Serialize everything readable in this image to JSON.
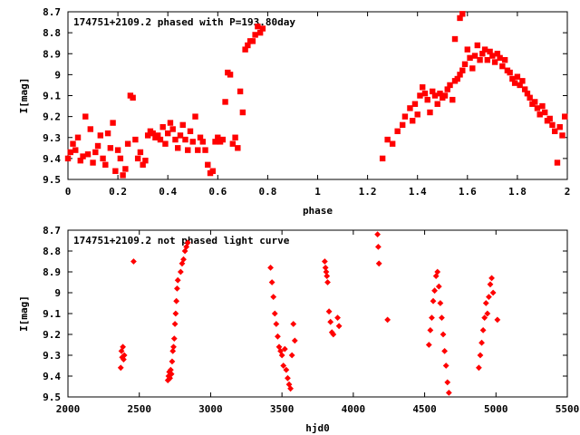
{
  "chart_data": [
    {
      "type": "scatter",
      "title": "174751+2109.2 phased with P=193.80day",
      "xlabel": "phase",
      "ylabel": "I[mag]",
      "xlim": [
        0,
        2
      ],
      "ylim": [
        9.5,
        8.7
      ],
      "y_inverted": true,
      "xticks": [
        "0",
        "0.2",
        "0.4",
        "0.6",
        "0.8",
        "1",
        "1.2",
        "1.4",
        "1.6",
        "1.8",
        "2"
      ],
      "yticks": [
        "8.7",
        "8.8",
        "8.9",
        "9",
        "9.1",
        "9.2",
        "9.3",
        "9.4",
        "9.5"
      ],
      "grid": false,
      "marker_color": "#ff0000",
      "points": [
        [
          0.0,
          9.4
        ],
        [
          0.01,
          9.37
        ],
        [
          0.02,
          9.33
        ],
        [
          0.03,
          9.36
        ],
        [
          0.04,
          9.3
        ],
        [
          0.05,
          9.41
        ],
        [
          0.06,
          9.39
        ],
        [
          0.07,
          9.2
        ],
        [
          0.08,
          9.38
        ],
        [
          0.09,
          9.26
        ],
        [
          0.1,
          9.42
        ],
        [
          0.11,
          9.37
        ],
        [
          0.12,
          9.34
        ],
        [
          0.13,
          9.29
        ],
        [
          0.14,
          9.4
        ],
        [
          0.15,
          9.43
        ],
        [
          0.16,
          9.28
        ],
        [
          0.17,
          9.35
        ],
        [
          0.18,
          9.23
        ],
        [
          0.19,
          9.46
        ],
        [
          0.2,
          9.36
        ],
        [
          0.21,
          9.4
        ],
        [
          0.22,
          9.48
        ],
        [
          0.23,
          9.45
        ],
        [
          0.24,
          9.33
        ],
        [
          0.25,
          9.1
        ],
        [
          0.26,
          9.11
        ],
        [
          0.27,
          9.31
        ],
        [
          0.28,
          9.4
        ],
        [
          0.29,
          9.37
        ],
        [
          0.3,
          9.43
        ],
        [
          0.31,
          9.41
        ],
        [
          0.32,
          9.29
        ],
        [
          0.33,
          9.27
        ],
        [
          0.34,
          9.28
        ],
        [
          0.35,
          9.3
        ],
        [
          0.36,
          9.29
        ],
        [
          0.37,
          9.31
        ],
        [
          0.38,
          9.25
        ],
        [
          0.39,
          9.33
        ],
        [
          0.4,
          9.28
        ],
        [
          0.41,
          9.23
        ],
        [
          0.42,
          9.26
        ],
        [
          0.43,
          9.31
        ],
        [
          0.44,
          9.35
        ],
        [
          0.45,
          9.29
        ],
        [
          0.46,
          9.24
        ],
        [
          0.47,
          9.31
        ],
        [
          0.48,
          9.36
        ],
        [
          0.49,
          9.27
        ],
        [
          0.5,
          9.32
        ],
        [
          0.51,
          9.2
        ],
        [
          0.52,
          9.36
        ],
        [
          0.53,
          9.3
        ],
        [
          0.54,
          9.32
        ],
        [
          0.55,
          9.36
        ],
        [
          0.56,
          9.43
        ],
        [
          0.57,
          9.47
        ],
        [
          0.58,
          9.46
        ],
        [
          0.59,
          9.32
        ],
        [
          0.6,
          9.3
        ],
        [
          0.61,
          9.32
        ],
        [
          0.62,
          9.31
        ],
        [
          0.63,
          9.13
        ],
        [
          0.64,
          8.99
        ],
        [
          0.65,
          9.0
        ],
        [
          0.66,
          9.33
        ],
        [
          0.67,
          9.3
        ],
        [
          0.68,
          9.35
        ],
        [
          0.69,
          9.08
        ],
        [
          0.7,
          9.18
        ],
        [
          0.71,
          8.88
        ],
        [
          0.72,
          8.86
        ],
        [
          0.73,
          8.84
        ],
        [
          0.74,
          8.84
        ],
        [
          0.75,
          8.81
        ],
        [
          0.76,
          8.77
        ],
        [
          0.77,
          8.8
        ],
        [
          0.78,
          8.78
        ],
        [
          1.26,
          9.4
        ],
        [
          1.28,
          9.31
        ],
        [
          1.3,
          9.33
        ],
        [
          1.32,
          9.27
        ],
        [
          1.34,
          9.24
        ],
        [
          1.35,
          9.2
        ],
        [
          1.37,
          9.16
        ],
        [
          1.38,
          9.22
        ],
        [
          1.39,
          9.14
        ],
        [
          1.4,
          9.19
        ],
        [
          1.41,
          9.1
        ],
        [
          1.42,
          9.06
        ],
        [
          1.43,
          9.09
        ],
        [
          1.44,
          9.12
        ],
        [
          1.45,
          9.18
        ],
        [
          1.46,
          9.08
        ],
        [
          1.47,
          9.1
        ],
        [
          1.48,
          9.14
        ],
        [
          1.49,
          9.09
        ],
        [
          1.5,
          9.11
        ],
        [
          1.51,
          9.1
        ],
        [
          1.52,
          9.07
        ],
        [
          1.53,
          9.05
        ],
        [
          1.54,
          9.12
        ],
        [
          1.55,
          9.03
        ],
        [
          1.56,
          9.02
        ],
        [
          1.57,
          9.0
        ],
        [
          1.58,
          8.98
        ],
        [
          1.59,
          8.95
        ],
        [
          1.6,
          8.88
        ],
        [
          1.61,
          8.92
        ],
        [
          1.62,
          8.97
        ],
        [
          1.63,
          8.91
        ],
        [
          1.64,
          8.86
        ],
        [
          1.65,
          8.93
        ],
        [
          1.66,
          8.9
        ],
        [
          1.67,
          8.88
        ],
        [
          1.68,
          8.93
        ],
        [
          1.69,
          8.89
        ],
        [
          1.7,
          8.91
        ],
        [
          1.71,
          8.94
        ],
        [
          1.72,
          8.9
        ],
        [
          1.73,
          8.92
        ],
        [
          1.74,
          8.96
        ],
        [
          1.75,
          8.93
        ],
        [
          1.76,
          8.98
        ],
        [
          1.77,
          8.99
        ],
        [
          1.78,
          9.02
        ],
        [
          1.79,
          9.04
        ],
        [
          1.8,
          9.01
        ],
        [
          1.81,
          9.05
        ],
        [
          1.82,
          9.03
        ],
        [
          1.83,
          9.07
        ],
        [
          1.84,
          9.09
        ],
        [
          1.85,
          9.11
        ],
        [
          1.86,
          9.14
        ],
        [
          1.87,
          9.13
        ],
        [
          1.88,
          9.16
        ],
        [
          1.89,
          9.19
        ],
        [
          1.9,
          9.15
        ],
        [
          1.91,
          9.18
        ],
        [
          1.92,
          9.22
        ],
        [
          1.93,
          9.21
        ],
        [
          1.94,
          9.24
        ],
        [
          1.95,
          9.27
        ],
        [
          1.96,
          9.42
        ],
        [
          1.97,
          9.25
        ],
        [
          1.98,
          9.29
        ],
        [
          1.99,
          9.2
        ],
        [
          1.55,
          8.83
        ],
        [
          1.57,
          8.73
        ],
        [
          1.58,
          8.71
        ]
      ]
    },
    {
      "type": "scatter",
      "title": "174751+2109.2 not phased light curve",
      "xlabel": "hjd0",
      "ylabel": "I[mag]",
      "xlim": [
        2000,
        5500
      ],
      "ylim": [
        9.5,
        8.7
      ],
      "y_inverted": true,
      "xticks": [
        "2000",
        "2500",
        "3000",
        "3500",
        "4000",
        "4500",
        "5000",
        "5500"
      ],
      "yticks": [
        "8.7",
        "8.8",
        "8.9",
        "9",
        "9.1",
        "9.2",
        "9.3",
        "9.4",
        "9.5"
      ],
      "grid": false,
      "marker_color": "#ff0000",
      "points": [
        [
          2370,
          9.36
        ],
        [
          2375,
          9.28
        ],
        [
          2380,
          9.31
        ],
        [
          2385,
          9.26
        ],
        [
          2390,
          9.32
        ],
        [
          2395,
          9.3
        ],
        [
          2460,
          8.85
        ],
        [
          2700,
          9.42
        ],
        [
          2705,
          9.4
        ],
        [
          2710,
          9.38
        ],
        [
          2715,
          9.41
        ],
        [
          2720,
          9.37
        ],
        [
          2725,
          9.39
        ],
        [
          2730,
          9.33
        ],
        [
          2735,
          9.28
        ],
        [
          2740,
          9.26
        ],
        [
          2745,
          9.22
        ],
        [
          2750,
          9.15
        ],
        [
          2755,
          9.1
        ],
        [
          2760,
          9.04
        ],
        [
          2765,
          8.98
        ],
        [
          2770,
          8.94
        ],
        [
          2790,
          8.9
        ],
        [
          2800,
          8.86
        ],
        [
          2810,
          8.84
        ],
        [
          2820,
          8.8
        ],
        [
          2830,
          8.78
        ],
        [
          2840,
          8.76
        ],
        [
          3420,
          8.88
        ],
        [
          3430,
          8.95
        ],
        [
          3440,
          9.02
        ],
        [
          3450,
          9.1
        ],
        [
          3460,
          9.15
        ],
        [
          3470,
          9.21
        ],
        [
          3480,
          9.26
        ],
        [
          3490,
          9.28
        ],
        [
          3500,
          9.3
        ],
        [
          3510,
          9.35
        ],
        [
          3520,
          9.27
        ],
        [
          3530,
          9.37
        ],
        [
          3540,
          9.41
        ],
        [
          3550,
          9.44
        ],
        [
          3560,
          9.46
        ],
        [
          3570,
          9.3
        ],
        [
          3580,
          9.15
        ],
        [
          3590,
          9.23
        ],
        [
          3800,
          8.85
        ],
        [
          3805,
          8.88
        ],
        [
          3810,
          8.9
        ],
        [
          3815,
          8.92
        ],
        [
          3820,
          8.95
        ],
        [
          3830,
          9.09
        ],
        [
          3840,
          9.14
        ],
        [
          3850,
          9.19
        ],
        [
          3860,
          9.2
        ],
        [
          3890,
          9.12
        ],
        [
          3900,
          9.16
        ],
        [
          4170,
          8.72
        ],
        [
          4175,
          8.78
        ],
        [
          4180,
          8.86
        ],
        [
          4240,
          9.13
        ],
        [
          4530,
          9.25
        ],
        [
          4540,
          9.18
        ],
        [
          4550,
          9.12
        ],
        [
          4560,
          9.04
        ],
        [
          4570,
          8.99
        ],
        [
          4580,
          8.92
        ],
        [
          4590,
          8.9
        ],
        [
          4600,
          8.97
        ],
        [
          4610,
          9.05
        ],
        [
          4620,
          9.12
        ],
        [
          4630,
          9.2
        ],
        [
          4640,
          9.28
        ],
        [
          4650,
          9.35
        ],
        [
          4660,
          9.43
        ],
        [
          4670,
          9.48
        ],
        [
          4880,
          9.36
        ],
        [
          4890,
          9.3
        ],
        [
          4900,
          9.24
        ],
        [
          4910,
          9.18
        ],
        [
          4920,
          9.12
        ],
        [
          4930,
          9.05
        ],
        [
          4940,
          9.1
        ],
        [
          4950,
          9.02
        ],
        [
          4960,
          8.96
        ],
        [
          4970,
          8.93
        ],
        [
          4980,
          9.0
        ],
        [
          5010,
          9.13
        ]
      ]
    }
  ]
}
